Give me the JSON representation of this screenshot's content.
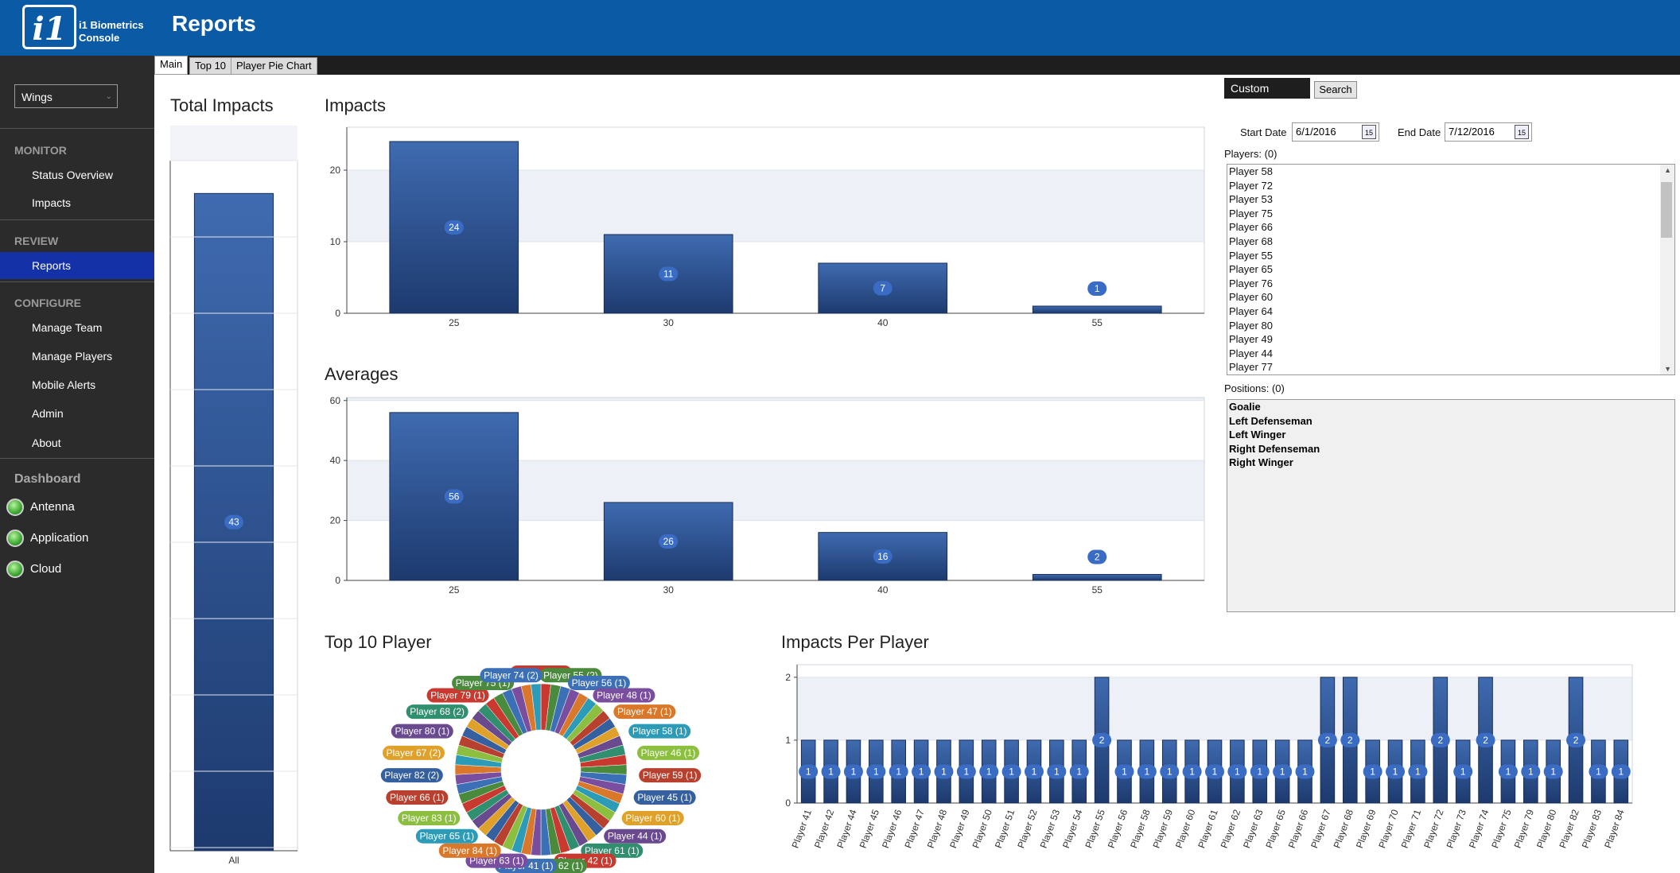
{
  "app": {
    "brand_line1": "i1 Biometrics",
    "brand_line2": "Console",
    "logo_text": "i1",
    "title": "Reports"
  },
  "sidebar": {
    "team": "Wings",
    "monitor": {
      "title": "MONITOR",
      "items": [
        "Status Overview",
        "Impacts"
      ]
    },
    "review": {
      "title": "REVIEW",
      "items": [
        "Reports"
      ]
    },
    "configure": {
      "title": "CONFIGURE",
      "items": [
        "Manage Team",
        "Manage Players",
        "Mobile Alerts",
        "Admin",
        "About"
      ]
    },
    "dashboard": {
      "title": "Dashboard",
      "items": [
        "Antenna",
        "Application",
        "Cloud"
      ],
      "status_color": "#3ea832"
    }
  },
  "tabs": [
    "Main",
    "Top 10",
    "Player Pie Chart"
  ],
  "filters": {
    "range": "Custom",
    "search": "Search",
    "start_label": "Start Date",
    "start": "6/1/2016",
    "end_label": "End Date",
    "end": "7/12/2016",
    "players_label": "Players: (0)",
    "positions_label": "Positions: (0)",
    "players": [
      "Player 58",
      "Player 72",
      "Player 53",
      "Player 75",
      "Player 66",
      "Player 68",
      "Player 55",
      "Player 65",
      "Player 76",
      "Player 60",
      "Player 64",
      "Player 80",
      "Player 49",
      "Player 44",
      "Player 77"
    ],
    "positions": [
      "Goalie",
      "Left Defenseman",
      "Left Winger",
      "Right Defenseman",
      "Right Winger"
    ]
  },
  "colors": {
    "bar": "#2a4d8a",
    "accent": "#0b5aa6"
  },
  "chart_data": [
    {
      "type": "bar",
      "title": "Total Impacts",
      "categories": [
        "All"
      ],
      "values": [
        43
      ]
    },
    {
      "type": "bar",
      "title": "Impacts",
      "categories": [
        "25",
        "30",
        "40",
        "55"
      ],
      "values": [
        24,
        11,
        7,
        1
      ],
      "ylim": [
        0,
        26
      ],
      "yticks": [
        0,
        10,
        20
      ]
    },
    {
      "type": "bar",
      "title": "Averages",
      "categories": [
        "25",
        "30",
        "40",
        "55"
      ],
      "values": [
        56,
        26,
        16,
        2
      ],
      "ylim": [
        0,
        61
      ],
      "yticks": [
        0,
        20,
        40,
        60
      ]
    },
    {
      "type": "pie",
      "title": "Top 10 Player",
      "labels": [
        "Player 54 (1)",
        "Player 55 (2)",
        "Player 56 (1)",
        "Player 48 (1)",
        "Player 47 (1)",
        "Player 58 (1)",
        "Player 46 (1)",
        "Player 59 (1)",
        "Player 45 (1)",
        "Player 60 (1)",
        "Player 44 (1)",
        "Player 61 (1)",
        "Player 42 (1)",
        "Player 62 (1)",
        "Player 41 (1)",
        "Player 63 (1)",
        "Player 84 (1)",
        "Player 65 (1)",
        "Player 83 (1)",
        "Player 66 (1)",
        "Player 82 (2)",
        "Player 67 (2)",
        "Player 80 (1)",
        "Player 68 (2)",
        "Player 79 (1)",
        "Player 75 (1)",
        "Player 74 (2)"
      ]
    },
    {
      "type": "bar",
      "title": "Impacts Per Player",
      "categories": [
        "Player 41",
        "Player 42",
        "Player 44",
        "Player 45",
        "Player 46",
        "Player 47",
        "Player 48",
        "Player 49",
        "Player 50",
        "Player 51",
        "Player 52",
        "Player 53",
        "Player 54",
        "Player 55",
        "Player 56",
        "Player 58",
        "Player 59",
        "Player 60",
        "Player 61",
        "Player 62",
        "Player 63",
        "Player 65",
        "Player 66",
        "Player 67",
        "Player 68",
        "Player 69",
        "Player 70",
        "Player 71",
        "Player 72",
        "Player 73",
        "Player 74",
        "Player 75",
        "Player 79",
        "Player 80",
        "Player 82",
        "Player 83",
        "Player 84"
      ],
      "values": [
        1,
        1,
        1,
        1,
        1,
        1,
        1,
        1,
        1,
        1,
        1,
        1,
        1,
        2,
        1,
        1,
        1,
        1,
        1,
        1,
        1,
        1,
        1,
        2,
        2,
        1,
        1,
        1,
        2,
        1,
        2,
        1,
        1,
        1,
        2,
        1,
        1
      ],
      "ylim": [
        0,
        2.2
      ],
      "yticks": [
        0,
        1,
        2
      ]
    }
  ]
}
